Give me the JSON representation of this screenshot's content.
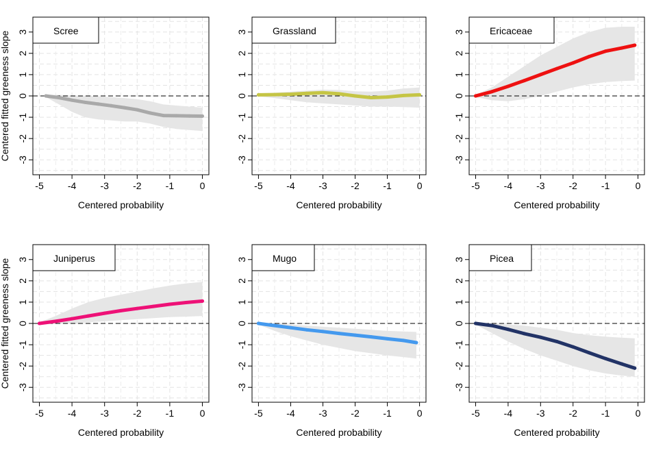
{
  "figure": {
    "ylabel": "Centered fitted greeness slope",
    "xlabel": "Centered probability"
  },
  "chart_data": [
    {
      "type": "line",
      "title": "Scree",
      "line_color": "#a9a9a9",
      "band_color": "#e6e6e6",
      "xlabel": "Centered probability",
      "ylabel": "Centered fitted greeness slope",
      "xlim": [
        -5.2,
        0.2
      ],
      "ylim": [
        -3.7,
        3.7
      ],
      "xticks": [
        -5,
        -4,
        -3,
        -2,
        -1,
        0
      ],
      "yticks": [
        -3,
        -2,
        -1,
        0,
        1,
        2,
        3
      ],
      "grid": true,
      "x": [
        -4.8,
        -4.4,
        -4.0,
        -3.6,
        -3.2,
        -2.8,
        -2.4,
        -2.0,
        -1.6,
        -1.2,
        -0.8,
        -0.4,
        0.0
      ],
      "y": [
        0.0,
        -0.08,
        -0.2,
        -0.3,
        -0.38,
        -0.46,
        -0.55,
        -0.65,
        -0.8,
        -0.92,
        -0.93,
        -0.94,
        -0.95
      ],
      "band_upper": [
        0.05,
        0.05,
        0.02,
        0.0,
        -0.02,
        -0.05,
        -0.1,
        -0.15,
        -0.25,
        -0.4,
        -0.45,
        -0.5,
        -0.55
      ],
      "band_lower": [
        -0.05,
        -0.4,
        -0.75,
        -1.0,
        -1.1,
        -1.15,
        -1.2,
        -1.2,
        -1.3,
        -1.45,
        -1.55,
        -1.6,
        -1.65
      ]
    },
    {
      "type": "line",
      "title": "Grassland",
      "line_color": "#c5c545",
      "band_color": "#e6e6e6",
      "xlabel": "Centered probability",
      "ylabel": "",
      "xlim": [
        -5.2,
        0.2
      ],
      "ylim": [
        -3.7,
        3.7
      ],
      "xticks": [
        -5,
        -4,
        -3,
        -2,
        -1,
        0
      ],
      "yticks": [
        -3,
        -2,
        -1,
        0,
        1,
        2,
        3
      ],
      "grid": true,
      "x": [
        -5.0,
        -4.5,
        -4.0,
        -3.5,
        -3.0,
        -2.5,
        -2.0,
        -1.5,
        -1.0,
        -0.5,
        0.0
      ],
      "y": [
        0.05,
        0.06,
        0.08,
        0.12,
        0.15,
        0.1,
        0.0,
        -0.08,
        -0.05,
        0.02,
        0.05
      ],
      "band_upper": [
        0.12,
        0.15,
        0.2,
        0.25,
        0.3,
        0.28,
        0.22,
        0.2,
        0.25,
        0.35,
        0.4
      ],
      "band_lower": [
        -0.02,
        -0.1,
        -0.2,
        -0.3,
        -0.35,
        -0.4,
        -0.45,
        -0.5,
        -0.5,
        -0.52,
        -0.55
      ]
    },
    {
      "type": "line",
      "title": "Ericaceae",
      "line_color": "#ee1111",
      "band_color": "#e6e6e6",
      "xlabel": "Centered probability",
      "ylabel": "",
      "xlim": [
        -5.2,
        0.2
      ],
      "ylim": [
        -3.7,
        3.7
      ],
      "xticks": [
        -5,
        -4,
        -3,
        -2,
        -1,
        0
      ],
      "yticks": [
        -3,
        -2,
        -1,
        0,
        1,
        2,
        3
      ],
      "grid": true,
      "x": [
        -5.0,
        -4.5,
        -4.0,
        -3.5,
        -3.0,
        -2.5,
        -2.0,
        -1.5,
        -1.0,
        -0.5,
        -0.1
      ],
      "y": [
        0.0,
        0.2,
        0.45,
        0.72,
        1.0,
        1.28,
        1.55,
        1.85,
        2.1,
        2.25,
        2.38
      ],
      "band_upper": [
        0.05,
        0.4,
        0.9,
        1.4,
        1.9,
        2.3,
        2.7,
        3.0,
        3.2,
        3.25,
        3.25
      ],
      "band_lower": [
        -0.05,
        -0.2,
        -0.25,
        -0.15,
        0.0,
        0.2,
        0.4,
        0.55,
        0.65,
        0.7,
        0.72
      ]
    },
    {
      "type": "line",
      "title": "Juniperus",
      "line_color": "#ee1177",
      "band_color": "#e6e6e6",
      "xlabel": "Centered probability",
      "ylabel": "Centered fitted greeness slope",
      "xlim": [
        -5.2,
        0.2
      ],
      "ylim": [
        -3.7,
        3.7
      ],
      "xticks": [
        -5,
        -4,
        -3,
        -2,
        -1,
        0
      ],
      "yticks": [
        -3,
        -2,
        -1,
        0,
        1,
        2,
        3
      ],
      "grid": true,
      "x": [
        -5.0,
        -4.5,
        -4.0,
        -3.5,
        -3.0,
        -2.5,
        -2.0,
        -1.5,
        -1.0,
        -0.5,
        0.0
      ],
      "y": [
        0.0,
        0.1,
        0.22,
        0.35,
        0.48,
        0.6,
        0.7,
        0.8,
        0.9,
        0.98,
        1.05
      ],
      "band_upper": [
        0.05,
        0.35,
        0.7,
        1.0,
        1.2,
        1.35,
        1.5,
        1.65,
        1.78,
        1.88,
        1.95
      ],
      "band_lower": [
        -0.05,
        -0.02,
        0.0,
        0.05,
        0.1,
        0.15,
        0.2,
        0.25,
        0.3,
        0.32,
        0.35
      ]
    },
    {
      "type": "line",
      "title": "Mugo",
      "line_color": "#4499ee",
      "band_color": "#e6e6e6",
      "xlabel": "Centered probability",
      "ylabel": "",
      "xlim": [
        -5.2,
        0.2
      ],
      "ylim": [
        -3.7,
        3.7
      ],
      "xticks": [
        -5,
        -4,
        -3,
        -2,
        -1,
        0
      ],
      "yticks": [
        -3,
        -2,
        -1,
        0,
        1,
        2,
        3
      ],
      "grid": true,
      "x": [
        -5.0,
        -4.5,
        -4.0,
        -3.5,
        -3.0,
        -2.5,
        -2.0,
        -1.5,
        -1.0,
        -0.5,
        -0.1
      ],
      "y": [
        0.0,
        -0.1,
        -0.2,
        -0.3,
        -0.38,
        -0.47,
        -0.55,
        -0.63,
        -0.72,
        -0.8,
        -0.9
      ],
      "band_upper": [
        0.05,
        0.0,
        -0.05,
        -0.1,
        -0.15,
        -0.2,
        -0.25,
        -0.3,
        -0.35,
        -0.38,
        -0.4
      ],
      "band_lower": [
        -0.05,
        -0.35,
        -0.6,
        -0.8,
        -1.0,
        -1.15,
        -1.3,
        -1.4,
        -1.5,
        -1.58,
        -1.65
      ]
    },
    {
      "type": "line",
      "title": "Picea",
      "line_color": "#223366",
      "band_color": "#e6e6e6",
      "xlabel": "Centered probability",
      "ylabel": "",
      "xlim": [
        -5.2,
        0.2
      ],
      "ylim": [
        -3.7,
        3.7
      ],
      "xticks": [
        -5,
        -4,
        -3,
        -2,
        -1,
        0
      ],
      "yticks": [
        -3,
        -2,
        -1,
        0,
        1,
        2,
        3
      ],
      "grid": true,
      "x": [
        -5.0,
        -4.5,
        -4.0,
        -3.5,
        -3.0,
        -2.5,
        -2.0,
        -1.5,
        -1.0,
        -0.5,
        -0.1
      ],
      "y": [
        0.0,
        -0.1,
        -0.28,
        -0.48,
        -0.65,
        -0.85,
        -1.1,
        -1.38,
        -1.65,
        -1.9,
        -2.1
      ],
      "band_upper": [
        0.05,
        0.0,
        -0.05,
        -0.1,
        -0.2,
        -0.3,
        -0.45,
        -0.55,
        -0.62,
        -0.67,
        -0.7
      ],
      "band_lower": [
        -0.05,
        -0.45,
        -0.85,
        -1.2,
        -1.5,
        -1.75,
        -2.0,
        -2.2,
        -2.35,
        -2.45,
        -2.5
      ]
    }
  ]
}
